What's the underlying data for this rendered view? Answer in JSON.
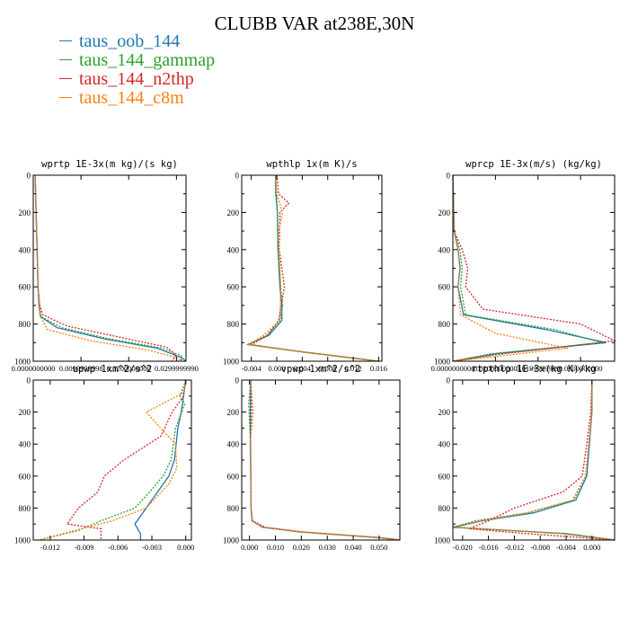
{
  "title": "CLUBB VAR at238E,30N",
  "legend": [
    {
      "name": "taus_oob_144",
      "color": "#1f77b4"
    },
    {
      "name": "taus_144_gammap",
      "color": "#2ca02c"
    },
    {
      "name": "taus_144_n2thp",
      "color": "#d62728"
    },
    {
      "name": "taus_144_c8m",
      "color": "#ff7f0e"
    }
  ],
  "chart_data": [
    {
      "type": "line",
      "title": "wprtp  1E-3x(m kg)/(s kg)",
      "xlim": [
        0,
        0.032
      ],
      "ylim": [
        1000,
        0
      ],
      "xticks": [
        0,
        0.01,
        0.02,
        0.03
      ],
      "xtick_labels": [
        "0.0000000000",
        "0.0099999998",
        "0.0200000000",
        "0.0299999990"
      ],
      "yticks": [
        0,
        200,
        400,
        600,
        800,
        1000
      ],
      "ytick_labels": [
        "0",
        "200",
        "400",
        "600",
        "800",
        "1000"
      ],
      "series": [
        {
          "color": "#1f77b4",
          "dashed": false,
          "x": [
            0.0004,
            0.0006,
            0.0008,
            0.001,
            0.0012,
            0.0015,
            0.005,
            0.015,
            0.026,
            0.031,
            0.032
          ],
          "y": [
            0,
            200,
            400,
            600,
            700,
            760,
            820,
            880,
            930,
            980,
            1000
          ]
        },
        {
          "color": "#2ca02c",
          "dashed": true,
          "x": [
            0.0004,
            0.0006,
            0.0008,
            0.001,
            0.0013,
            0.0016,
            0.006,
            0.016,
            0.027,
            0.031,
            0.031
          ],
          "y": [
            0,
            200,
            400,
            600,
            700,
            760,
            820,
            880,
            930,
            970,
            1000
          ]
        },
        {
          "color": "#d62728",
          "dashed": true,
          "x": [
            0.0004,
            0.0006,
            0.0008,
            0.001,
            0.0014,
            0.002,
            0.007,
            0.018,
            0.028,
            0.03,
            0.029
          ],
          "y": [
            0,
            200,
            400,
            600,
            700,
            750,
            810,
            870,
            925,
            970,
            1000
          ]
        },
        {
          "color": "#ff7f0e",
          "dashed": true,
          "x": [
            0.0004,
            0.0006,
            0.0008,
            0.001,
            0.0012,
            0.0015,
            0.003,
            0.012,
            0.024,
            0.03,
            0.031
          ],
          "y": [
            0,
            200,
            400,
            600,
            700,
            760,
            830,
            890,
            940,
            980,
            1000
          ]
        }
      ]
    },
    {
      "type": "line",
      "title": "wpthlp  1x(m K)/s",
      "xlim": [
        -0.0055,
        0.0165
      ],
      "ylim": [
        1000,
        0
      ],
      "xticks": [
        -0.004,
        0,
        0.004,
        0.008,
        0.012,
        0.016
      ],
      "xtick_labels": [
        "-0.004",
        "0.000",
        "0.004",
        "0.008",
        "0.012",
        "0.016"
      ],
      "yticks": [
        0,
        200,
        400,
        600,
        800,
        1000
      ],
      "ytick_labels": [
        "0",
        "200",
        "400",
        "600",
        "800",
        "1000"
      ],
      "series": [
        {
          "color": "#1f77b4",
          "dashed": false,
          "x": [
            -0.0002,
            -0.0001,
            0.0001,
            0.0002,
            0.0005,
            0.0008,
            0.0008,
            -0.0012,
            -0.0045,
            0.004,
            0.016
          ],
          "y": [
            0,
            100,
            200,
            400,
            600,
            700,
            780,
            860,
            910,
            950,
            1000
          ]
        },
        {
          "color": "#2ca02c",
          "dashed": true,
          "x": [
            -0.0002,
            -0.0002,
            0.0001,
            0.0002,
            0.0006,
            0.0009,
            0.0005,
            -0.0015,
            -0.0046,
            0.004,
            0.016
          ],
          "y": [
            0,
            100,
            200,
            400,
            600,
            700,
            780,
            860,
            910,
            950,
            1000
          ]
        },
        {
          "color": "#d62728",
          "dashed": true,
          "x": [
            0,
            0.0003,
            0.0019,
            0.0005,
            0.0004,
            0.0012,
            0.0003,
            -0.0014,
            -0.004,
            0.004,
            0.016
          ],
          "y": [
            0,
            100,
            150,
            200,
            400,
            600,
            780,
            860,
            910,
            950,
            1000
          ]
        },
        {
          "color": "#ff7f0e",
          "dashed": true,
          "x": [
            -0.0002,
            0,
            0.0009,
            0.0003,
            0.0004,
            0.0006,
            0.0005,
            -0.002,
            -0.0044,
            0.004,
            0.016
          ],
          "y": [
            0,
            100,
            200,
            300,
            400,
            600,
            780,
            860,
            910,
            950,
            1000
          ]
        }
      ]
    },
    {
      "type": "line",
      "title": "wprcp  1E-3x(m/s) (kg/kg)",
      "xlim": [
        0,
        0.038
      ],
      "ylim": [
        1000,
        0
      ],
      "xticks": [
        0,
        0.01,
        0.02,
        0.03
      ],
      "xtick_labels": [
        "0.0000000000",
        "0.0100000000",
        "0.0199999999",
        "0.0300000000"
      ],
      "yticks": [
        0,
        200,
        400,
        600,
        800,
        1000
      ],
      "ytick_labels": [
        "0",
        "200",
        "400",
        "600",
        "800",
        "1000"
      ],
      "series": [
        {
          "color": "#1f77b4",
          "dashed": false,
          "x": [
            0,
            0.0003,
            0.0012,
            0.0017,
            0.0012,
            0.0025,
            0.022,
            0.036,
            0.01,
            0
          ],
          "y": [
            0,
            300,
            400,
            500,
            600,
            750,
            830,
            900,
            960,
            1000
          ]
        },
        {
          "color": "#2ca02c",
          "dashed": true,
          "x": [
            0,
            0.0003,
            0.0016,
            0.0022,
            0.0018,
            0.003,
            0.024,
            0.035,
            0.009,
            0
          ],
          "y": [
            0,
            300,
            400,
            500,
            600,
            750,
            830,
            900,
            960,
            1000
          ]
        },
        {
          "color": "#d62728",
          "dashed": true,
          "x": [
            0,
            0.0003,
            0.0022,
            0.0035,
            0.003,
            0.007,
            0.03,
            0.038,
            0.012,
            0
          ],
          "y": [
            0,
            300,
            400,
            500,
            600,
            720,
            800,
            890,
            960,
            1000
          ]
        },
        {
          "color": "#ff7f0e",
          "dashed": true,
          "x": [
            0,
            0.0003,
            0.0012,
            0.0016,
            0.0012,
            0.0018,
            0.01,
            0.027,
            0.01,
            0
          ],
          "y": [
            0,
            300,
            400,
            500,
            600,
            750,
            850,
            930,
            975,
            1000
          ]
        }
      ]
    },
    {
      "type": "line",
      "title": "upwp  1xm^2/s^2",
      "xlim": [
        -0.0135,
        0.0005
      ],
      "ylim": [
        1000,
        0
      ],
      "xticks": [
        -0.012,
        -0.009,
        -0.006,
        -0.003,
        0
      ],
      "xtick_labels": [
        "-0.012",
        "-0.009",
        "-0.006",
        "-0.003",
        "0.000"
      ],
      "yticks": [
        0,
        200,
        400,
        600,
        800,
        1000
      ],
      "ytick_labels": [
        "0",
        "200",
        "400",
        "600",
        "800",
        "1000"
      ],
      "series": [
        {
          "color": "#1f77b4",
          "dashed": false,
          "x": [
            0,
            -0.0002,
            -0.0004,
            -0.0007,
            -0.001,
            -0.0015,
            -0.0025,
            -0.0035,
            -0.0045,
            -0.004,
            -0.004
          ],
          "y": [
            0,
            100,
            200,
            300,
            500,
            600,
            700,
            800,
            900,
            960,
            1000
          ]
        },
        {
          "color": "#2ca02c",
          "dashed": true,
          "x": [
            0,
            -0.0005,
            -0.0001,
            -0.0009,
            -0.0013,
            -0.002,
            -0.0032,
            -0.0045,
            -0.0075,
            -0.0095,
            -0.013
          ],
          "y": [
            0,
            100,
            150,
            300,
            500,
            600,
            700,
            800,
            880,
            940,
            1000
          ]
        },
        {
          "color": "#d62728",
          "dashed": true,
          "x": [
            0,
            -0.0002,
            -0.0012,
            -0.0022,
            -0.0055,
            -0.0072,
            -0.0078,
            -0.0095,
            -0.0105,
            -0.0075,
            -0.0075
          ],
          "y": [
            0,
            100,
            200,
            350,
            500,
            600,
            700,
            800,
            900,
            930,
            1000
          ]
        },
        {
          "color": "#ff7f0e",
          "dashed": true,
          "x": [
            0,
            -0.0002,
            -0.0035,
            -0.0025,
            -0.0009,
            -0.0008,
            -0.0015,
            -0.0035,
            -0.0065,
            -0.0098,
            -0.013
          ],
          "y": [
            0,
            80,
            200,
            280,
            400,
            550,
            650,
            800,
            880,
            940,
            1000
          ]
        }
      ]
    },
    {
      "type": "line",
      "title": "vpwp  1xm^2/s^2",
      "xlim": [
        -0.003,
        0.058
      ],
      "ylim": [
        1000,
        0
      ],
      "xticks": [
        0,
        0.01,
        0.02,
        0.03,
        0.04,
        0.05
      ],
      "xtick_labels": [
        "0.000",
        "0.010",
        "0.020",
        "0.030",
        "0.040",
        "0.050"
      ],
      "yticks": [
        0,
        200,
        400,
        600,
        800,
        1000
      ],
      "ytick_labels": [
        "0",
        "200",
        "400",
        "600",
        "800",
        "1000"
      ],
      "series": [
        {
          "color": "#1f77b4",
          "dashed": false,
          "x": [
            0.0005,
            0.0003,
            0.0004,
            0.0005,
            0.0006,
            0.001,
            0.005,
            0.02,
            0.05,
            0.058
          ],
          "y": [
            0,
            200,
            400,
            600,
            800,
            880,
            920,
            950,
            985,
            1000
          ]
        },
        {
          "color": "#2ca02c",
          "dashed": true,
          "x": [
            0.0005,
            -0.0003,
            0.0004,
            0.0005,
            0.0006,
            0.001,
            0.005,
            0.02,
            0.05,
            0.058
          ],
          "y": [
            0,
            150,
            400,
            600,
            800,
            880,
            920,
            950,
            985,
            1000
          ]
        },
        {
          "color": "#d62728",
          "dashed": true,
          "x": [
            0.0005,
            0.0008,
            0.0003,
            0.0005,
            0.0006,
            0.0012,
            0.006,
            0.021,
            0.05,
            0.058
          ],
          "y": [
            0,
            200,
            400,
            600,
            800,
            880,
            920,
            950,
            985,
            1000
          ]
        },
        {
          "color": "#ff7f0e",
          "dashed": true,
          "x": [
            0.0005,
            0.0014,
            0.0002,
            0.0005,
            0.0006,
            0.0011,
            0.005,
            0.02,
            0.05,
            0.058
          ],
          "y": [
            0,
            200,
            400,
            600,
            800,
            880,
            920,
            950,
            985,
            1000
          ]
        }
      ]
    },
    {
      "type": "line",
      "title": "rtpthlp  1E-3x(kg K)/kg",
      "xlim": [
        -0.0215,
        0.0035
      ],
      "ylim": [
        1000,
        0
      ],
      "xticks": [
        -0.02,
        -0.016,
        -0.012,
        -0.008,
        -0.004,
        0
      ],
      "xtick_labels": [
        "-0.020",
        "-0.016",
        "-0.012",
        "-0.008",
        "-0.004",
        "0.000"
      ],
      "yticks": [
        0,
        200,
        400,
        600,
        800,
        1000
      ],
      "ytick_labels": [
        "0",
        "200",
        "400",
        "600",
        "800",
        "1000"
      ],
      "series": [
        {
          "color": "#1f77b4",
          "dashed": false,
          "x": [
            0,
            0,
            -0.0004,
            -0.0008,
            -0.0025,
            -0.009,
            -0.017,
            -0.0215,
            -0.004,
            0.0035
          ],
          "y": [
            0,
            200,
            400,
            600,
            750,
            830,
            880,
            920,
            960,
            1000
          ]
        },
        {
          "color": "#2ca02c",
          "dashed": true,
          "x": [
            0,
            0,
            -0.0005,
            -0.001,
            -0.0028,
            -0.01,
            -0.018,
            -0.0215,
            -0.004,
            0.0035
          ],
          "y": [
            0,
            200,
            400,
            600,
            750,
            830,
            880,
            920,
            960,
            1000
          ]
        },
        {
          "color": "#d62728",
          "dashed": true,
          "x": [
            0,
            -0.0002,
            -0.0008,
            -0.0015,
            -0.0045,
            -0.012,
            -0.016,
            -0.019,
            -0.01,
            0.0035
          ],
          "y": [
            0,
            200,
            400,
            600,
            700,
            800,
            880,
            930,
            960,
            1000
          ]
        },
        {
          "color": "#ff7f0e",
          "dashed": true,
          "x": [
            0,
            0,
            -0.0005,
            -0.001,
            -0.003,
            -0.01,
            -0.017,
            -0.021,
            -0.005,
            0.0035
          ],
          "y": [
            0,
            200,
            400,
            600,
            750,
            830,
            880,
            920,
            960,
            1000
          ]
        }
      ]
    }
  ]
}
